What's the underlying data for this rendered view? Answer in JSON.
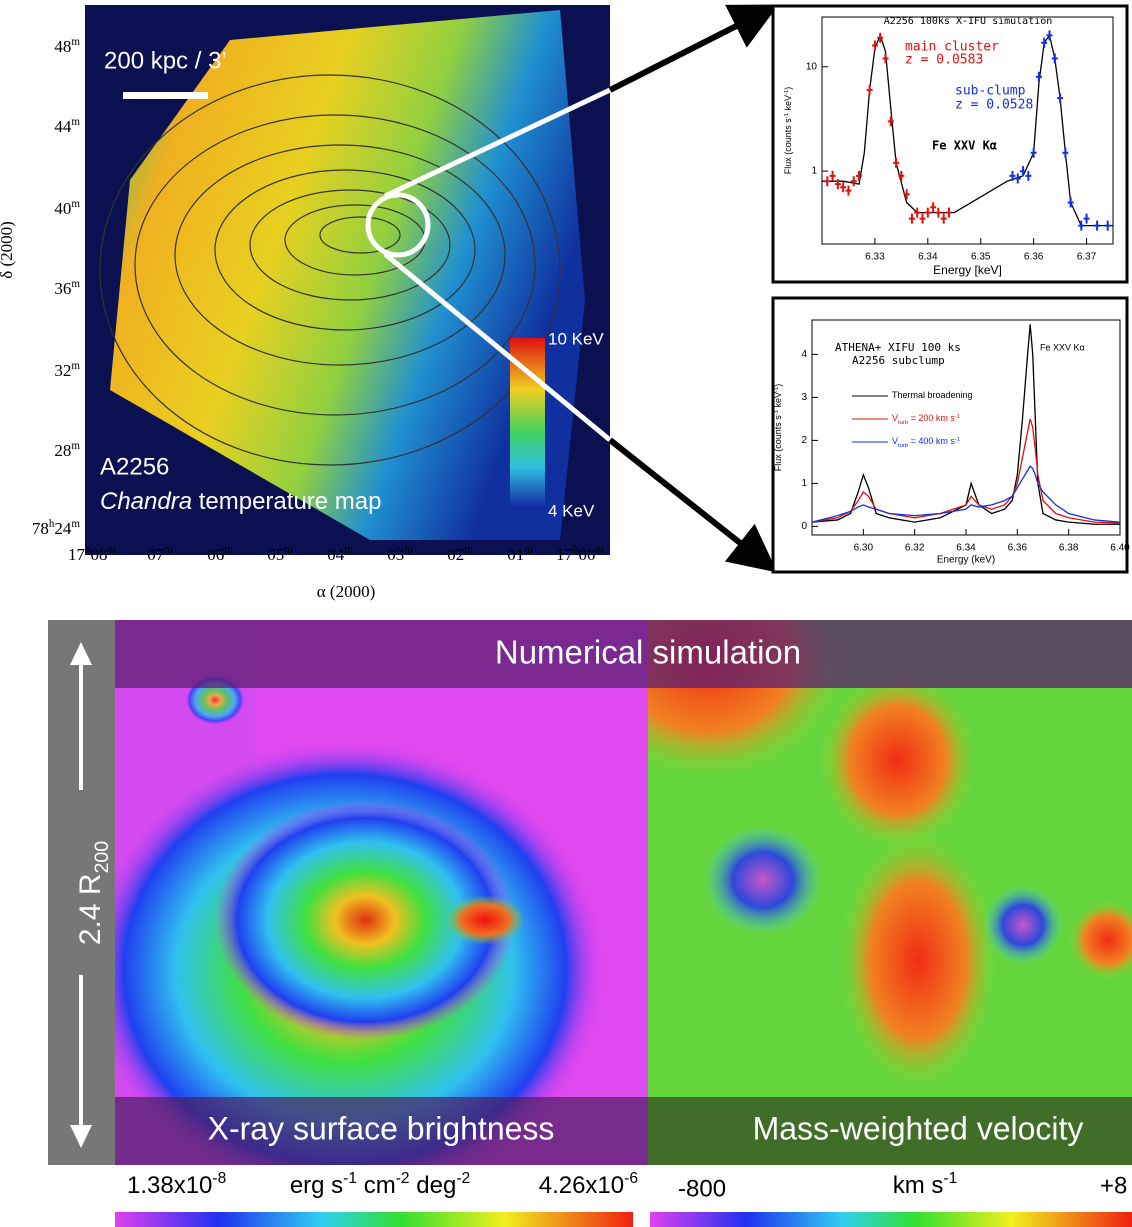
{
  "temperature_map": {
    "scale_bar": "200 kpc / 3’",
    "target": "A2256",
    "caption": [
      "Chandra",
      " temperature map"
    ],
    "colorbar_labels": [
      "10 KeV",
      "4 KeV"
    ],
    "y_axis_label": "δ (2000)",
    "x_axis_label": "α (2000)",
    "y_tick_labels": [
      [
        "48",
        "m"
      ],
      [
        "44",
        "m"
      ],
      [
        "40",
        "m"
      ],
      [
        "36",
        "m"
      ],
      [
        "32",
        "m"
      ],
      [
        "28",
        "m"
      ],
      [
        "78",
        "h",
        "24",
        "m"
      ]
    ],
    "x_tick_labels": [
      [
        "17",
        "h",
        "08",
        "m"
      ],
      [
        "07",
        "m"
      ],
      [
        "06",
        "m"
      ],
      [
        "05",
        "m"
      ],
      [
        "04",
        "m"
      ],
      [
        "03",
        "m"
      ],
      [
        "02",
        "m"
      ],
      [
        "01",
        "m"
      ],
      [
        "17",
        "h",
        "00",
        "m"
      ]
    ]
  },
  "chart_data": [
    {
      "type": "line",
      "title": "A2256 100ks X-IFU simulation",
      "x_label": "Energy [keV]",
      "y_label": [
        "Flux (counts s",
        "-1",
        " keV",
        "-1",
        ")"
      ],
      "log_y": true,
      "xlim": [
        6.32,
        6.375
      ],
      "xticks": [
        6.33,
        6.34,
        6.35,
        6.36,
        6.37
      ],
      "ylim": [
        0.2,
        30
      ],
      "yticks": [
        1,
        10
      ],
      "annotations": [
        "z = 0.0583",
        "z = 0.0528",
        "Fe XXV Kα"
      ],
      "series": [
        {
          "color": "#000000",
          "style": "step",
          "x": [
            6.32,
            6.324,
            6.327,
            6.328,
            6.329,
            6.33,
            6.331,
            6.332,
            6.333,
            6.334,
            6.336,
            6.338,
            6.345,
            6.355,
            6.358,
            6.36,
            6.361,
            6.362,
            6.363,
            6.364,
            6.365,
            6.366,
            6.367,
            6.369,
            6.375
          ],
          "values": [
            0.8,
            0.8,
            0.75,
            1.5,
            6,
            15,
            20,
            14,
            4,
            1.2,
            0.5,
            0.4,
            0.4,
            0.8,
            0.9,
            1.5,
            7,
            17,
            20,
            12,
            5,
            1.5,
            0.5,
            0.3,
            0.3
          ]
        },
        {
          "name": "main cluster",
          "color": "#e01010",
          "style": "markers",
          "x": [
            6.321,
            6.322,
            6.323,
            6.324,
            6.325,
            6.326,
            6.327,
            6.329,
            6.33,
            6.331,
            6.332,
            6.333,
            6.334,
            6.335,
            6.336,
            6.337,
            6.338,
            6.339,
            6.34,
            6.341,
            6.342,
            6.343,
            6.344
          ],
          "values": [
            0.8,
            0.9,
            0.75,
            0.7,
            0.65,
            0.8,
            0.9,
            6,
            16,
            19,
            12,
            3,
            1.2,
            0.9,
            0.6,
            0.35,
            0.4,
            0.35,
            0.4,
            0.45,
            0.4,
            0.35,
            0.4
          ]
        },
        {
          "name": "sub-clump",
          "color": "#1030e0",
          "style": "markers",
          "x": [
            6.356,
            6.357,
            6.358,
            6.359,
            6.36,
            6.361,
            6.362,
            6.363,
            6.364,
            6.365,
            6.366,
            6.367,
            6.369,
            6.37,
            6.372,
            6.374
          ],
          "values": [
            0.9,
            0.85,
            1.0,
            0.9,
            1.5,
            8,
            17,
            20,
            12,
            5,
            1.5,
            0.5,
            0.3,
            0.35,
            0.3,
            0.3
          ]
        }
      ]
    },
    {
      "type": "line",
      "title": "ATHENA+ XIFU 100 ks",
      "subtitle": "A2256 subclump",
      "x_label": "Energy (keV)",
      "y_label": [
        "Flux (counts s",
        "-1",
        " keV",
        "-1",
        ")"
      ],
      "log_y": false,
      "xlim": [
        6.28,
        6.4
      ],
      "xticks": [
        {
          "value": 6.3,
          "label": "6.30"
        },
        6.32,
        6.34,
        6.36,
        6.38,
        {
          "value": 6.4,
          "label": "6.40"
        }
      ],
      "ylim": [
        -0.2,
        4.8
      ],
      "yticks": [
        0,
        1,
        2,
        3,
        4
      ],
      "annotations": [
        "Fe XXV Kα"
      ],
      "x": [
        6.28,
        6.29,
        6.295,
        6.298,
        6.3,
        6.302,
        6.305,
        6.31,
        6.32,
        6.33,
        6.34,
        6.342,
        6.345,
        6.35,
        6.355,
        6.358,
        6.36,
        6.362,
        6.364,
        6.365,
        6.366,
        6.367,
        6.368,
        6.37,
        6.375,
        6.38,
        6.39,
        6.4
      ],
      "series": [
        {
          "name": [
            "Thermal broadening"
          ],
          "color": "#000000",
          "style": "step",
          "values": [
            0.1,
            0.15,
            0.3,
            0.8,
            1.2,
            0.9,
            0.3,
            0.2,
            0.1,
            0.2,
            0.5,
            1.0,
            0.5,
            0.3,
            0.4,
            0.6,
            1.2,
            2.5,
            4.0,
            4.7,
            4.0,
            2.5,
            1.0,
            0.3,
            0.15,
            0.1,
            0.05,
            0.05
          ]
        },
        {
          "name": [
            "V",
            "turb",
            " = 200 km s",
            "-1"
          ],
          "color": "#e01010",
          "style": "step",
          "values": [
            0.1,
            0.2,
            0.35,
            0.6,
            0.8,
            0.7,
            0.4,
            0.3,
            0.2,
            0.3,
            0.5,
            0.7,
            0.5,
            0.4,
            0.5,
            0.7,
            1.0,
            1.6,
            2.2,
            2.5,
            2.3,
            1.8,
            1.2,
            0.6,
            0.3,
            0.2,
            0.1,
            0.08
          ]
        },
        {
          "name": [
            "V",
            "turb",
            " = 400 km s",
            "-1"
          ],
          "color": "#1030e0",
          "style": "step",
          "values": [
            0.1,
            0.25,
            0.35,
            0.45,
            0.5,
            0.45,
            0.4,
            0.3,
            0.25,
            0.3,
            0.4,
            0.5,
            0.45,
            0.5,
            0.6,
            0.7,
            0.9,
            1.1,
            1.3,
            1.4,
            1.35,
            1.2,
            1.0,
            0.8,
            0.5,
            0.3,
            0.15,
            0.1
          ]
        }
      ]
    }
  ],
  "simulation": {
    "title": "Numerical simulation",
    "scale": [
      "2.4 R",
      "200"
    ],
    "left_label": "X-ray surface brightness",
    "right_label": "Mass-weighted velocity",
    "left_colorbar": {
      "min": [
        "1.38x10",
        "-8"
      ],
      "unit": [
        "erg s",
        "-1",
        " cm",
        "-2",
        " deg",
        "-2"
      ],
      "max": [
        "4.26x10",
        "-6"
      ]
    },
    "right_colorbar": {
      "min": "-800",
      "unit": [
        "km s",
        "-1"
      ],
      "max": "+8"
    }
  }
}
